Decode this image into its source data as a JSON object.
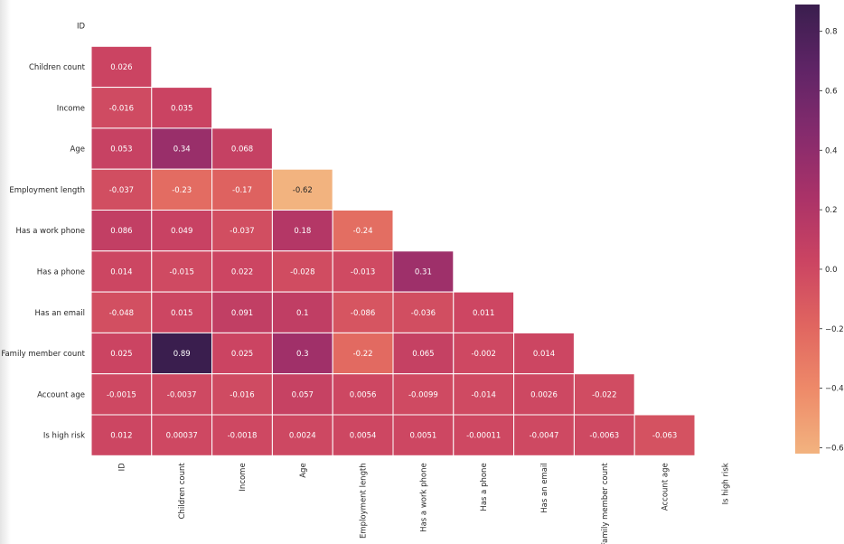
{
  "chart_data": {
    "type": "heatmap",
    "title": "",
    "xlabel": "",
    "ylabel": "",
    "mask": "upper-triangle",
    "labels": [
      "ID",
      "Children count",
      "Income",
      "Age",
      "Employment length",
      "Has a work phone",
      "Has a phone",
      "Has an email",
      "Family member count",
      "Account age",
      "Is high risk"
    ],
    "rows": [
      [],
      [
        "0.026"
      ],
      [
        "-0.016",
        "0.035"
      ],
      [
        "0.053",
        "0.34",
        "0.068"
      ],
      [
        "-0.037",
        "-0.23",
        "-0.17",
        "-0.62"
      ],
      [
        "0.086",
        "0.049",
        "-0.037",
        "0.18",
        "-0.24"
      ],
      [
        "0.014",
        "-0.015",
        "0.022",
        "-0.028",
        "-0.013",
        "0.31"
      ],
      [
        "-0.048",
        "0.015",
        "0.091",
        "0.1",
        "-0.086",
        "-0.036",
        "0.011"
      ],
      [
        "0.025",
        "0.89",
        "0.025",
        "0.3",
        "-0.22",
        "0.065",
        "-0.002",
        "0.014"
      ],
      [
        "-0.0015",
        "-0.0037",
        "-0.016",
        "0.057",
        "0.0056",
        "-0.0099",
        "-0.014",
        "0.0026",
        "-0.022"
      ],
      [
        "0.012",
        "0.00037",
        "-0.0018",
        "0.0024",
        "0.0054",
        "0.0051",
        "-0.00011",
        "-0.0047",
        "-0.0063",
        "-0.063"
      ]
    ],
    "colorbar": {
      "vmin": -0.62,
      "vmax": 0.89,
      "ticks": [
        0.8,
        0.6,
        0.4,
        0.2,
        0.0,
        -0.2,
        -0.4,
        -0.6
      ],
      "tick_labels": [
        "0.8",
        "0.6",
        "0.4",
        "0.2",
        "0.0",
        "−0.2",
        "−0.4",
        "−0.6"
      ]
    },
    "colormap": [
      "#f2b37f",
      "#ee8a69",
      "#e06560",
      "#cb4462",
      "#aa3268",
      "#852b6d",
      "#5f2466",
      "#3a1e4e"
    ]
  }
}
